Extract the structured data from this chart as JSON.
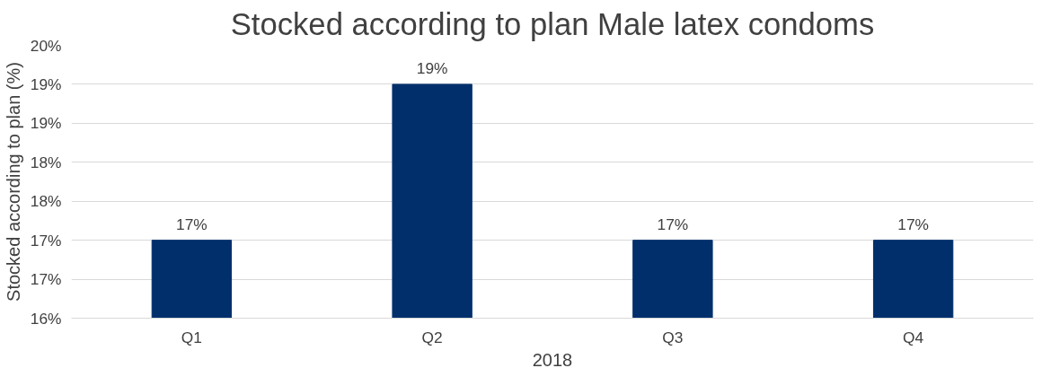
{
  "chart_data": {
    "type": "bar",
    "title": "Stocked according to plan Male latex condoms",
    "xlabel": "2018",
    "ylabel": "Stocked according to plan (%)",
    "categories": [
      "Q1",
      "Q2",
      "Q3",
      "Q4"
    ],
    "series": [
      {
        "color": "#002f6c",
        "values": [
          17,
          19,
          17,
          17
        ]
      }
    ],
    "ylim": [
      16,
      19.5
    ],
    "yticks": [
      {
        "value": 16,
        "label": "16%"
      },
      {
        "value": 16.5,
        "label": "17%"
      },
      {
        "value": 17,
        "label": "17%"
      },
      {
        "value": 17.5,
        "label": "18%"
      },
      {
        "value": 18,
        "label": "18%"
      },
      {
        "value": 18.5,
        "label": "19%"
      },
      {
        "value": 19,
        "label": "19%"
      },
      {
        "value": 19.5,
        "label": "20%"
      }
    ],
    "value_labels": [
      "17%",
      "19%",
      "17%",
      "17%"
    ],
    "grid": "y"
  }
}
